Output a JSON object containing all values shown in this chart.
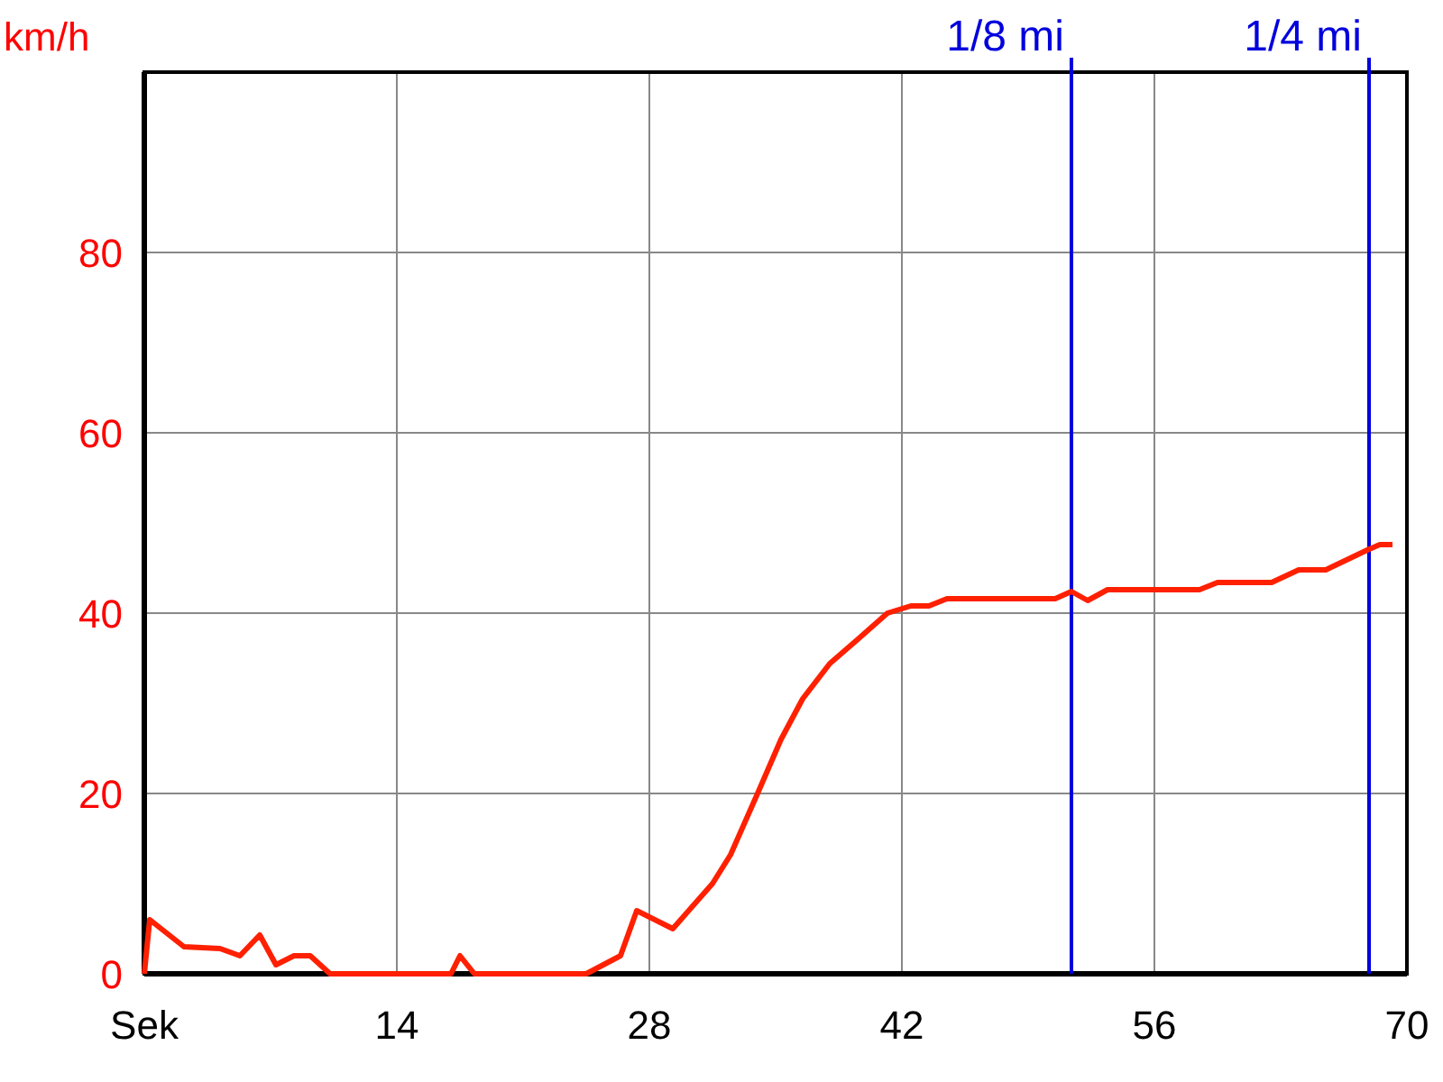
{
  "chart_data": {
    "type": "line",
    "ylabel": "km/h",
    "xlim": [
      0,
      70
    ],
    "ylim": [
      0,
      100
    ],
    "xticks": [
      {
        "value": 0,
        "label": "Sek"
      },
      14,
      28,
      42,
      56,
      70
    ],
    "yticks": [
      0,
      20,
      40,
      60,
      80
    ],
    "grid": true,
    "series": [
      {
        "color": "#ff2000",
        "x": [
          0,
          0.3,
          2.2,
          4.2,
          5.3,
          6.4,
          7.3,
          8.3,
          9.2,
          10.3,
          17,
          17.5,
          18.3,
          24.5,
          26.4,
          27.3,
          29.3,
          31.5,
          32.5,
          34,
          35.3,
          36.5,
          38,
          39.5,
          41.2,
          42.5,
          43.5,
          44.5,
          50.5,
          51.4,
          52.3,
          53.4,
          58.5,
          59.5,
          62.5,
          64,
          65.5,
          67.8,
          68.5,
          69.2
        ],
        "values": [
          0,
          6,
          3,
          2.8,
          2,
          4.3,
          1,
          2,
          2,
          0,
          0,
          2,
          0,
          0,
          2,
          7,
          5,
          10,
          13.2,
          20,
          26,
          30.5,
          34.4,
          37,
          40,
          40.8,
          40.8,
          41.6,
          41.6,
          42.4,
          41.4,
          42.6,
          42.6,
          43.4,
          43.4,
          44.8,
          44.8,
          47,
          47.6,
          47.6
        ]
      }
    ],
    "ref_lines": [
      {
        "axis": "x",
        "value": 51.4,
        "label": "1/8 mi",
        "color": "#0000dd"
      },
      {
        "axis": "x",
        "value": 67.9,
        "label": "1/4 mi",
        "color": "#0000dd"
      }
    ]
  }
}
